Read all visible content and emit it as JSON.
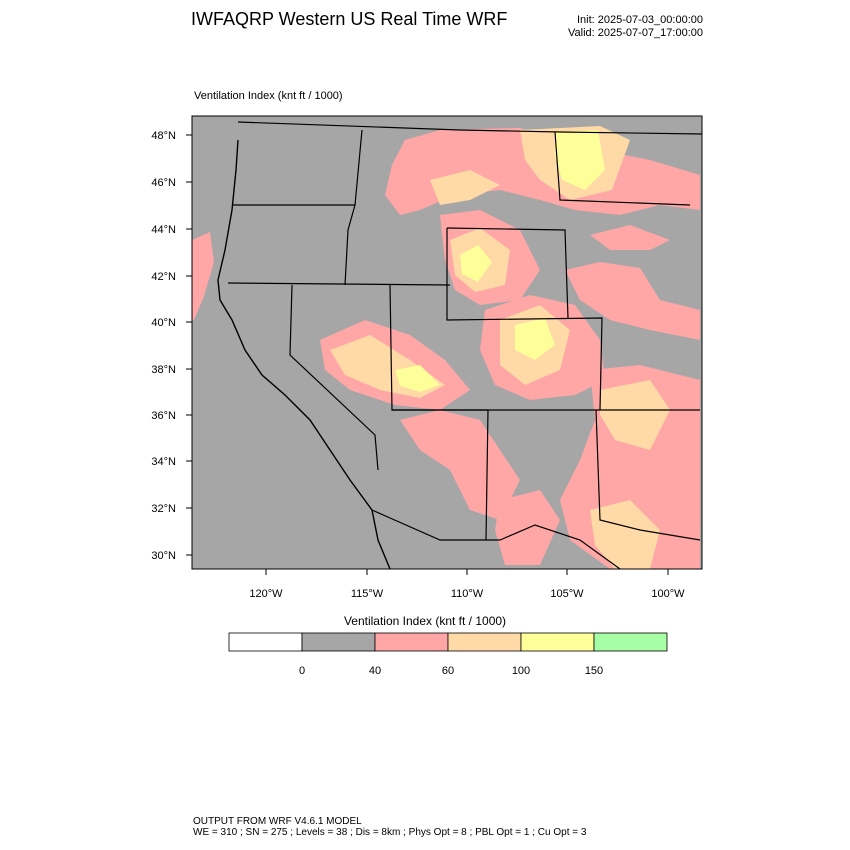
{
  "header": {
    "title": "IWFAQRP Western US Real Time WRF",
    "init": "Init: 2025-07-03_00:00:00",
    "valid": "Valid: 2025-07-07_17:00:00"
  },
  "field_label": "Ventilation Index   (knt ft / 1000)",
  "map": {
    "lat_labels": [
      "48°N",
      "46°N",
      "44°N",
      "42°N",
      "40°N",
      "38°N",
      "36°N",
      "34°N",
      "32°N",
      "30°N"
    ],
    "lon_labels": [
      "120°W",
      "115°W",
      "110°W",
      "105°W",
      "100°W"
    ],
    "background_color": "#a6a6a6"
  },
  "legend": {
    "title": "Ventilation Index  (knt ft / 1000)",
    "tick_labels": [
      "0",
      "40",
      "60",
      "100",
      "150"
    ],
    "colors": [
      "#ffffff",
      "#a6a6a6",
      "#ffa6a6",
      "#ffd9a6",
      "#ffff99",
      "#a6ffa6"
    ]
  },
  "footer": {
    "line1": "OUTPUT FROM WRF V4.6.1 MODEL",
    "line2": "WE = 310 ; SN = 275 ; Levels = 38 ; Dis = 8km ; Phys Opt = 8 ; PBL Opt = 1 ; Cu Opt = 3"
  }
}
